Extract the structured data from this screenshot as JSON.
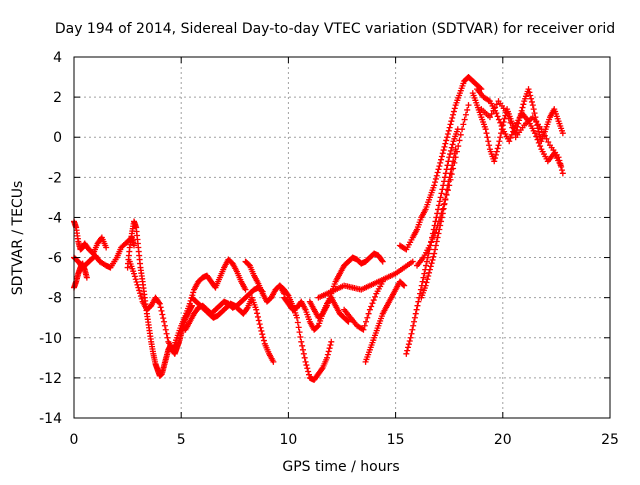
{
  "chart_data": {
    "type": "scatter",
    "title": "Day 194 of 2014, Sidereal Day-to-day VTEC variation (SDTVAR) for receiver orid",
    "xlabel": "GPS time / hours",
    "ylabel": "SDTVAR / TECUs",
    "xlim": [
      0,
      25
    ],
    "ylim": [
      -14,
      4
    ],
    "xticks": [
      0,
      5,
      10,
      15,
      20,
      25
    ],
    "xtick_labels": [
      "0",
      "5",
      "10",
      "15",
      "20",
      "25"
    ],
    "yticks": [
      -14,
      -12,
      -10,
      -8,
      -6,
      -4,
      -2,
      0,
      2,
      4
    ],
    "ytick_labels": [
      "-14",
      "-12",
      "-10",
      "-8",
      "-6",
      "-4",
      "-2",
      "0",
      "2",
      "4"
    ],
    "grid": true,
    "legend": "none",
    "marker": "plus",
    "color": "#ff0000",
    "series": [
      {
        "x": [
          0.0,
          0.1,
          0.2,
          0.3,
          0.4,
          0.5,
          0.7,
          0.9,
          1.1,
          1.3,
          1.5
        ],
        "y": [
          -4.2,
          -4.5,
          -5.2,
          -5.6,
          -5.5,
          -5.3,
          -5.6,
          -5.8,
          -5.3,
          -5.0,
          -5.5
        ]
      },
      {
        "x": [
          0.0,
          0.2,
          0.4,
          0.6,
          0.8,
          1.0,
          1.2,
          1.5,
          1.7,
          2.0,
          2.2,
          2.5,
          2.7,
          2.8
        ],
        "y": [
          -6.0,
          -6.2,
          -6.5,
          -6.3,
          -6.1,
          -5.9,
          -6.2,
          -6.4,
          -6.5,
          -6.0,
          -5.5,
          -5.2,
          -5.0,
          -5.4
        ]
      },
      {
        "x": [
          0.0,
          0.1,
          0.2,
          0.3,
          0.4,
          0.5,
          0.6
        ],
        "y": [
          -7.5,
          -7.2,
          -6.8,
          -6.5,
          -6.3,
          -6.6,
          -7.0
        ]
      },
      {
        "x": [
          2.5,
          2.6,
          2.7,
          2.8,
          2.9,
          3.0,
          3.1,
          3.2,
          3.3,
          3.4,
          3.5,
          3.6,
          3.7,
          3.8,
          3.9,
          4.0,
          4.1,
          4.2,
          4.3,
          4.4,
          4.5,
          4.6,
          4.7,
          4.8,
          4.9,
          5.0,
          5.1,
          5.2,
          5.3,
          5.4,
          5.5
        ],
        "y": [
          -6.5,
          -5.5,
          -4.8,
          -4.2,
          -4.5,
          -5.5,
          -6.5,
          -7.2,
          -8.0,
          -8.8,
          -9.5,
          -10.2,
          -10.8,
          -11.3,
          -11.6,
          -11.9,
          -11.8,
          -11.4,
          -11.0,
          -10.6,
          -10.4,
          -10.6,
          -10.8,
          -10.5,
          -10.2,
          -9.8,
          -9.4,
          -9.0,
          -8.8,
          -8.6,
          -8.4
        ]
      },
      {
        "x": [
          2.6,
          2.8,
          3.0,
          3.2,
          3.4,
          3.6,
          3.8,
          4.0,
          4.2,
          4.4,
          4.6,
          4.8,
          5.0,
          5.2,
          5.4,
          5.6,
          5.8,
          6.0,
          6.2,
          6.4,
          6.6,
          6.8,
          7.0,
          7.2,
          7.4,
          7.6,
          7.8,
          8.0
        ],
        "y": [
          -6.2,
          -6.8,
          -7.5,
          -8.2,
          -8.6,
          -8.4,
          -8.0,
          -8.3,
          -9.2,
          -10.2,
          -10.6,
          -10.0,
          -9.4,
          -8.9,
          -8.3,
          -7.6,
          -7.2,
          -7.0,
          -6.9,
          -7.2,
          -7.5,
          -7.0,
          -6.5,
          -6.1,
          -6.3,
          -6.7,
          -7.2,
          -7.6
        ]
      },
      {
        "x": [
          5.5,
          5.7,
          5.9,
          6.1,
          6.3,
          6.5,
          6.7,
          6.9,
          7.1,
          7.3,
          7.5,
          7.7,
          7.9,
          8.1,
          8.3,
          8.5,
          8.7,
          8.9,
          9.1,
          9.3
        ],
        "y": [
          -8.0,
          -8.2,
          -8.4,
          -8.6,
          -8.8,
          -9.0,
          -8.9,
          -8.7,
          -8.5,
          -8.3,
          -8.4,
          -8.6,
          -8.8,
          -8.5,
          -8.0,
          -8.6,
          -9.5,
          -10.3,
          -10.8,
          -11.2
        ]
      },
      {
        "x": [
          8.0,
          8.2,
          8.4,
          8.6,
          8.8,
          9.0,
          9.2,
          9.4,
          9.6,
          9.8
        ],
        "y": [
          -6.2,
          -6.4,
          -6.9,
          -7.3,
          -7.8,
          -8.2,
          -8.0,
          -7.6,
          -7.4,
          -7.8
        ]
      },
      {
        "x": [
          5.2,
          5.4,
          5.6,
          5.8,
          6.0,
          6.2,
          6.4,
          6.6,
          6.8,
          7.0,
          7.2,
          7.4,
          7.6,
          7.8,
          8.0,
          8.2,
          8.4,
          8.6,
          8.8
        ],
        "y": [
          -9.6,
          -9.2,
          -8.8,
          -8.5,
          -8.4,
          -8.6,
          -8.8,
          -8.6,
          -8.4,
          -8.2,
          -8.3,
          -8.5,
          -8.4,
          -8.2,
          -8.0,
          -7.8,
          -7.6,
          -7.5,
          -7.7
        ]
      },
      {
        "x": [
          9.6,
          9.8,
          10.0,
          10.2,
          10.4,
          10.6,
          10.8,
          11.0,
          11.2,
          11.4,
          11.6,
          11.8,
          12.0
        ],
        "y": [
          -7.4,
          -7.6,
          -7.9,
          -8.4,
          -9.0,
          -10.2,
          -11.2,
          -12.0,
          -12.1,
          -11.8,
          -11.5,
          -11.0,
          -10.2
        ]
      },
      {
        "x": [
          9.8,
          10.0,
          10.2,
          10.4,
          10.6,
          10.8,
          11.0,
          11.2,
          11.4,
          11.6,
          11.8,
          12.0,
          12.2,
          12.4,
          12.6,
          12.8
        ],
        "y": [
          -8.0,
          -8.3,
          -8.6,
          -8.5,
          -8.2,
          -8.6,
          -9.2,
          -9.6,
          -9.4,
          -8.8,
          -8.3,
          -8.0,
          -8.4,
          -8.8,
          -9.0,
          -9.2
        ]
      },
      {
        "x": [
          11.0,
          11.2,
          11.4,
          11.6,
          11.8,
          12.0,
          12.2,
          12.4,
          12.6,
          12.8,
          13.0,
          13.2,
          13.4,
          13.6,
          13.8,
          14.0,
          14.2,
          14.4
        ],
        "y": [
          -8.2,
          -8.6,
          -9.0,
          -8.8,
          -8.4,
          -7.8,
          -7.2,
          -6.8,
          -6.4,
          -6.2,
          -6.0,
          -6.1,
          -6.3,
          -6.2,
          -6.0,
          -5.8,
          -5.9,
          -6.2
        ]
      },
      {
        "x": [
          11.4,
          11.8,
          12.2,
          12.6,
          13.0,
          13.4,
          13.8,
          14.2,
          14.6,
          15.0,
          15.4,
          15.8
        ],
        "y": [
          -8.0,
          -7.8,
          -7.6,
          -7.4,
          -7.5,
          -7.6,
          -7.4,
          -7.2,
          -7.0,
          -6.8,
          -6.5,
          -6.2
        ]
      },
      {
        "x": [
          12.6,
          12.9,
          13.2,
          13.5,
          13.8,
          14.1,
          14.4
        ],
        "y": [
          -8.6,
          -9.0,
          -9.4,
          -9.6,
          -8.6,
          -7.8,
          -7.2
        ]
      },
      {
        "x": [
          13.6,
          13.8,
          14.0,
          14.2,
          14.4,
          14.6,
          14.8,
          15.0,
          15.2,
          15.4
        ],
        "y": [
          -11.2,
          -10.6,
          -10.0,
          -9.4,
          -8.8,
          -8.4,
          -8.0,
          -7.6,
          -7.2,
          -7.4
        ]
      },
      {
        "x": [
          15.2,
          15.5,
          15.8,
          16.0,
          16.2,
          16.4,
          16.6,
          16.8,
          17.0,
          17.2,
          17.4,
          17.6,
          17.8,
          18.0,
          18.2,
          18.4,
          18.6,
          18.8,
          19.0
        ],
        "y": [
          -5.4,
          -5.6,
          -5.0,
          -4.6,
          -4.0,
          -3.6,
          -3.0,
          -2.4,
          -1.6,
          -0.8,
          0.0,
          0.8,
          1.6,
          2.2,
          2.8,
          3.0,
          2.8,
          2.6,
          2.4
        ]
      },
      {
        "x": [
          15.5,
          15.7,
          15.9,
          16.1,
          16.3,
          16.5,
          16.7,
          16.9,
          17.1,
          17.3,
          17.5,
          17.7,
          17.9
        ],
        "y": [
          -10.8,
          -10.0,
          -9.0,
          -8.0,
          -7.0,
          -6.0,
          -5.0,
          -4.0,
          -3.0,
          -2.0,
          -1.0,
          -0.2,
          0.4
        ]
      },
      {
        "x": [
          16.2,
          16.4,
          16.6,
          16.8,
          17.0,
          17.2,
          17.4,
          17.6,
          17.8
        ],
        "y": [
          -8.0,
          -7.4,
          -6.6,
          -5.8,
          -4.8,
          -3.8,
          -2.6,
          -1.6,
          -0.6
        ]
      },
      {
        "x": [
          16.0,
          16.3,
          16.6,
          16.9,
          17.2,
          17.5,
          17.8,
          18.1,
          18.4
        ],
        "y": [
          -6.4,
          -6.0,
          -5.4,
          -4.6,
          -3.6,
          -2.4,
          -1.0,
          0.4,
          1.6
        ]
      },
      {
        "x": [
          18.6,
          18.8,
          19.0,
          19.2,
          19.4,
          19.6,
          19.8,
          20.0,
          20.2,
          20.4,
          20.6,
          20.8,
          21.0,
          21.2,
          21.4,
          21.6,
          21.8,
          22.0,
          22.2,
          22.4,
          22.6,
          22.8
        ],
        "y": [
          2.2,
          1.6,
          1.0,
          0.4,
          -0.6,
          -1.2,
          -0.4,
          0.6,
          1.4,
          0.8,
          0.2,
          1.0,
          1.8,
          2.4,
          1.6,
          0.6,
          -0.2,
          0.4,
          1.0,
          1.4,
          0.8,
          0.2
        ]
      },
      {
        "x": [
          18.8,
          19.1,
          19.4,
          19.7,
          20.0,
          20.3,
          20.6,
          20.9,
          21.2,
          21.5,
          21.8,
          22.1,
          22.4,
          22.7
        ],
        "y": [
          2.4,
          2.0,
          1.8,
          1.2,
          0.4,
          -0.2,
          0.6,
          1.2,
          0.8,
          0.2,
          -0.6,
          -1.2,
          -0.8,
          -1.4
        ]
      },
      {
        "x": [
          19.0,
          19.4,
          19.8,
          20.2,
          20.6,
          21.0,
          21.4,
          21.8,
          22.2,
          22.6,
          22.8
        ],
        "y": [
          1.4,
          1.0,
          1.8,
          1.2,
          0.0,
          0.6,
          1.0,
          0.4,
          -0.4,
          -1.0,
          -1.8
        ]
      }
    ]
  }
}
